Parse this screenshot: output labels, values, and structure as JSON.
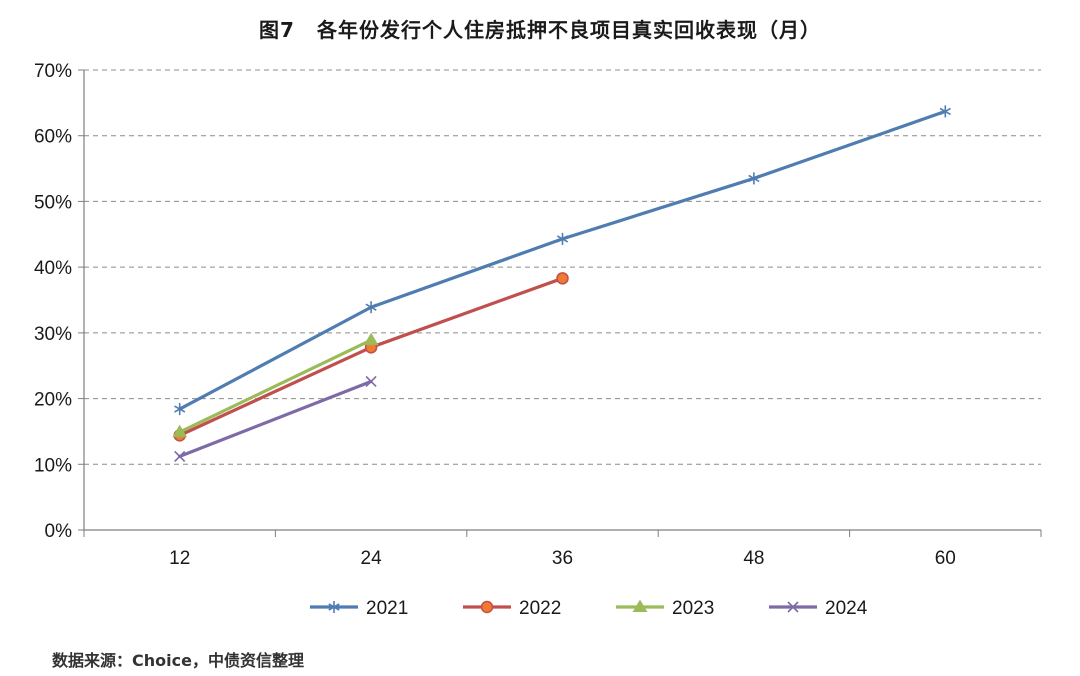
{
  "title_prefix": "图7",
  "title_text": "各年份发行个人住房抵押不良项目真实回收表现（月）",
  "source": "数据来源：Choice，中债资信整理",
  "chart_data": {
    "type": "line",
    "title": "图7 各年份发行个人住房抵押不良项目真实回收表现（月）",
    "xlabel": "",
    "ylabel": "",
    "x": [
      12,
      24,
      36,
      48,
      60
    ],
    "x_tick_labels": [
      "12",
      "24",
      "36",
      "48",
      "60"
    ],
    "ylim": [
      0,
      70
    ],
    "y_ticks": [
      0,
      10,
      20,
      30,
      40,
      50,
      60,
      70
    ],
    "y_tick_labels": [
      "0%",
      "10%",
      "20%",
      "30%",
      "40%",
      "50%",
      "60%",
      "70%"
    ],
    "grid": "horizontal-dashed",
    "legend_position": "bottom",
    "series": [
      {
        "name": "2021",
        "color": "#4f7cb1",
        "marker": "asterisk",
        "x": [
          12,
          24,
          36,
          48,
          60
        ],
        "values": [
          18.4,
          33.9,
          44.3,
          53.5,
          63.7
        ]
      },
      {
        "name": "2022",
        "color": "#c0504d",
        "marker": "circle",
        "marker_fill": "#ee7b30",
        "x": [
          12,
          24,
          36
        ],
        "values": [
          14.4,
          27.8,
          38.3
        ]
      },
      {
        "name": "2023",
        "color": "#9bbb59",
        "marker": "triangle",
        "x": [
          12,
          24
        ],
        "values": [
          14.9,
          28.9
        ]
      },
      {
        "name": "2024",
        "color": "#7e6aa6",
        "marker": "x",
        "x": [
          12,
          24
        ],
        "values": [
          11.2,
          22.6
        ]
      }
    ]
  }
}
